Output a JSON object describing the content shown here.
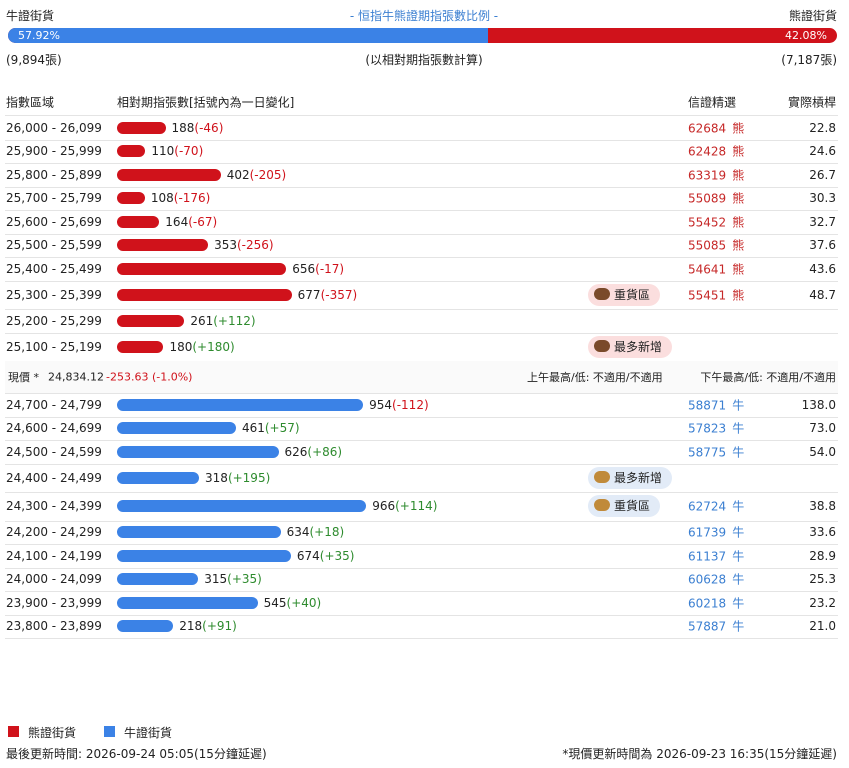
{
  "header": {
    "bull_label": "牛證街貨",
    "title": "- 恒指牛熊證期指張數比例 -",
    "bear_label": "熊證街貨",
    "bull_pct": {
      "value": 57.92,
      "label": "57.92%"
    },
    "bear_pct": {
      "value": 42.08,
      "label": "42.08%"
    },
    "bull_count": "(9,894張)",
    "note": "(以相對期指張數計算)",
    "bear_count": "(7,187張)"
  },
  "columns": [
    "指數區域",
    "相對期指張數[括號內為一日變化]",
    "信證精選",
    "實際槓桿"
  ],
  "bear_rows": [
    {
      "range": "26,000 - 26,099",
      "contracts": 188,
      "change": "(-46)",
      "code": "62684",
      "kind": "熊",
      "leverage": "22.8"
    },
    {
      "range": "25,900 - 25,999",
      "contracts": 110,
      "change": "(-70)",
      "code": "62428",
      "kind": "熊",
      "leverage": "24.6"
    },
    {
      "range": "25,800 - 25,899",
      "contracts": 402,
      "change": "(-205)",
      "code": "63319",
      "kind": "熊",
      "leverage": "26.7"
    },
    {
      "range": "25,700 - 25,799",
      "contracts": 108,
      "change": "(-176)",
      "code": "55089",
      "kind": "熊",
      "leverage": "30.3"
    },
    {
      "range": "25,600 - 25,699",
      "contracts": 164,
      "change": "(-67)",
      "code": "55452",
      "kind": "熊",
      "leverage": "32.7"
    },
    {
      "range": "25,500 - 25,599",
      "contracts": 353,
      "change": "(-256)",
      "code": "55085",
      "kind": "熊",
      "leverage": "37.6"
    },
    {
      "range": "25,400 - 25,499",
      "contracts": 656,
      "change": "(-17)",
      "code": "54641",
      "kind": "熊",
      "leverage": "43.6"
    },
    {
      "range": "25,300 - 25,399",
      "contracts": 677,
      "change": "(-357)",
      "badge": "重貨區",
      "code": "55451",
      "kind": "熊",
      "leverage": "48.7"
    },
    {
      "range": "25,200 - 25,299",
      "contracts": 261,
      "change": "(+112)"
    },
    {
      "range": "25,100 - 25,199",
      "contracts": 180,
      "change": "(+180)",
      "badge": "最多新增"
    }
  ],
  "current": {
    "label": "現價 *",
    "price": "24,834.12",
    "change": "-253.63 (-1.0%)",
    "am": "上午最高/低: 不適用/不適用",
    "pm": "下午最高/低: 不適用/不適用"
  },
  "bull_rows": [
    {
      "range": "24,700 - 24,799",
      "contracts": 954,
      "change": "(-112)",
      "code": "58871",
      "kind": "牛",
      "leverage": "138.0"
    },
    {
      "range": "24,600 - 24,699",
      "contracts": 461,
      "change": "(+57)",
      "code": "57823",
      "kind": "牛",
      "leverage": "73.0"
    },
    {
      "range": "24,500 - 24,599",
      "contracts": 626,
      "change": "(+86)",
      "code": "58775",
      "kind": "牛",
      "leverage": "54.0"
    },
    {
      "range": "24,400 - 24,499",
      "contracts": 318,
      "change": "(+195)",
      "badge": "最多新增"
    },
    {
      "range": "24,300 - 24,399",
      "contracts": 966,
      "change": "(+114)",
      "badge": "重貨區",
      "code": "62724",
      "kind": "牛",
      "leverage": "38.8"
    },
    {
      "range": "24,200 - 24,299",
      "contracts": 634,
      "change": "(+18)",
      "code": "61739",
      "kind": "牛",
      "leverage": "33.6"
    },
    {
      "range": "24,100 - 24,199",
      "contracts": 674,
      "change": "(+35)",
      "code": "61137",
      "kind": "牛",
      "leverage": "28.9"
    },
    {
      "range": "24,000 - 24,099",
      "contracts": 315,
      "change": "(+35)",
      "code": "60628",
      "kind": "牛",
      "leverage": "25.3"
    },
    {
      "range": "23,900 - 23,999",
      "contracts": 545,
      "change": "(+40)",
      "code": "60218",
      "kind": "牛",
      "leverage": "23.2"
    },
    {
      "range": "23,800 - 23,899",
      "contracts": 218,
      "change": "(+91)",
      "code": "57887",
      "kind": "牛",
      "leverage": "21.0"
    }
  ],
  "legend": [
    "熊證街貨",
    "牛證街貨"
  ],
  "footer": {
    "updated": "最後更新時間: 2026-09-24 05:05(15分鐘延遲)",
    "price_updated": "*現價更新時間為 2026-09-23 16:35(15分鐘延遲)"
  }
}
